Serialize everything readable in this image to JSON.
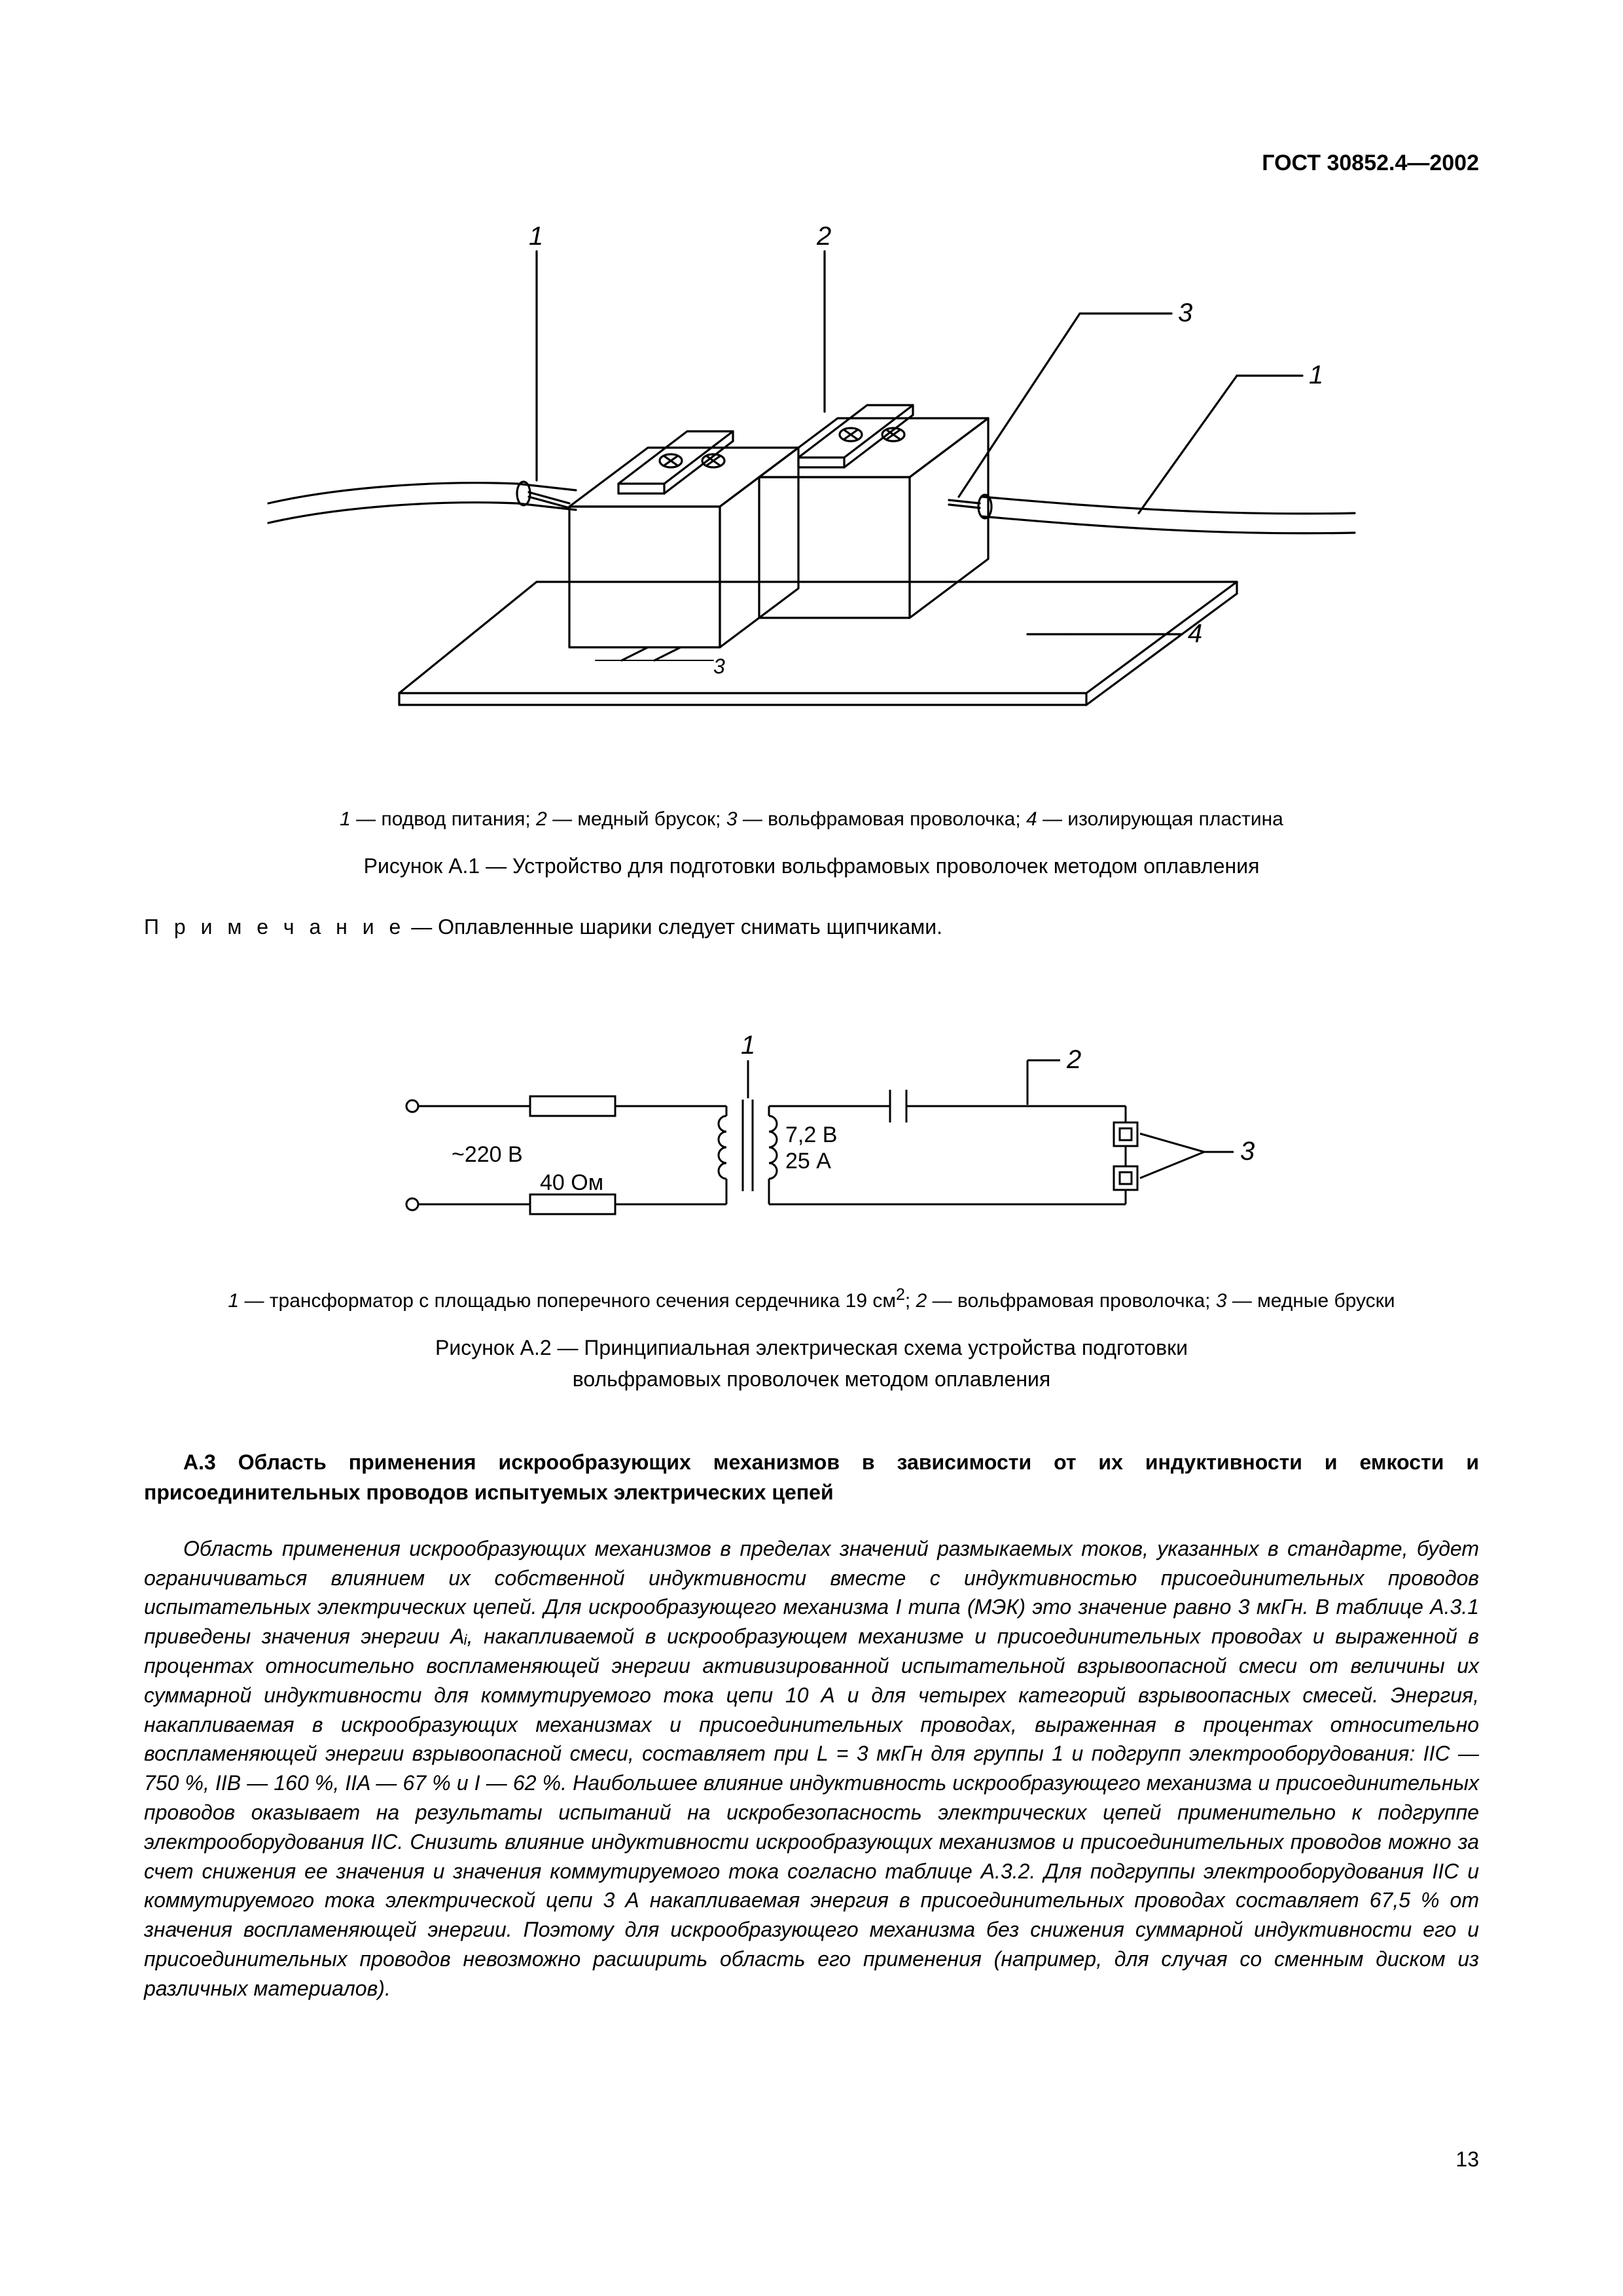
{
  "header": {
    "doc_id": "ГОСТ 30852.4—2002"
  },
  "figure1": {
    "type": "technical-illustration",
    "labels": [
      "1",
      "2",
      "3",
      "1",
      "4",
      "3"
    ],
    "stroke": "#000000",
    "stroke_width": 3.5,
    "legend_parts": [
      {
        "num": "1",
        "text": "подвод питания"
      },
      {
        "num": "2",
        "text": "медный брусок"
      },
      {
        "num": "3",
        "text": "вольфрамовая проволочка"
      },
      {
        "num": "4",
        "text": "изолирующая пластина"
      }
    ],
    "caption_prefix": "Рисунок  А.1",
    "caption_text": "Устройство для подготовки вольфрамовых проволочек методом оплавления"
  },
  "note": {
    "prefix": "П р и м е ч а н и е",
    "text": "Оплавленные шарики следует снимать щипчиками."
  },
  "figure2": {
    "type": "schematic-circuit",
    "stroke": "#000000",
    "stroke_width": 3,
    "labels": {
      "n1": "1",
      "n2": "2",
      "n3": "3"
    },
    "text": {
      "voltage_in": "~220 В",
      "resistor": "40 Ом",
      "sec_v": "7,2 В",
      "sec_i": "25 А"
    },
    "legend_parts": [
      {
        "num": "1",
        "text_html": "трансформатор с площадью поперечного сечения сердечника 19 см<sup>2</sup>"
      },
      {
        "num": "2",
        "text_html": "вольфрамовая проволочка"
      },
      {
        "num": "3",
        "text_html": "медные бруски"
      }
    ],
    "caption_prefix": "Рисунок  А.2",
    "caption_line1": "Принципиальная электрическая схема устройства подготовки",
    "caption_line2": "вольфрамовых проволочек методом оплавления"
  },
  "section": {
    "heading": "А.3  Область применения искрообразующих механизмов в зависимости от их индуктивности и емкости и присоединительных проводов испытуемых электрических цепей",
    "body": "Область применения искрообразующих механизмов в пределах значений размыкаемых токов, указанных в стандарте, будет ограничиваться влиянием их собственной индуктивности вместе с индуктивностью присоединительных проводов испытательных электрических цепей. Для искрообразующего механизма I типа (МЭК) это значение равно 3 мкГн. В таблице А.3.1 приведены значения энергии Aᵢ, накапливаемой в искрообразующем механизме и присоединительных проводах и выраженной в процентах относительно воспламеняющей энергии активизированной испытательной взрывоопасной смеси от величины их суммарной индуктивности для коммутируемого тока цепи 10 А и для четырех категорий взрывоопасных смесей. Энергия, накапливаемая в искрообразующих механизмах и присоединительных проводах, выраженная в процентах относительно воспламеняющей энергии взрывоопасной смеси, составляет при L = 3 мкГн для группы 1 и подгрупп электрооборудования: IIC — 750 %, IIB — 160 %, IIA — 67 % и I — 62 %. Наибольшее влияние индуктивность искрообразующего механизма и присоединительных проводов оказывает на результаты испытаний на искробезопасность электрических цепей применительно к подгруппе электрооборудования IIC. Снизить влияние индуктивности искрообразующих механизмов и присоединительных проводов можно за счет снижения ее значения и значения коммутируемого тока согласно таблице А.3.2. Для подгруппы электрооборудования IIC и коммутируемого тока электрической цепи 3 А накапливаемая энергия в присоединительных проводах составляет 67,5 % от значения воспламеняющей энергии. Поэтому для искрообразующего механизма без снижения суммарной индуктивности его и присоединительных проводов невозможно расширить область его применения (например, для случая со сменным диском из различных материалов)."
  },
  "page_number": "13"
}
